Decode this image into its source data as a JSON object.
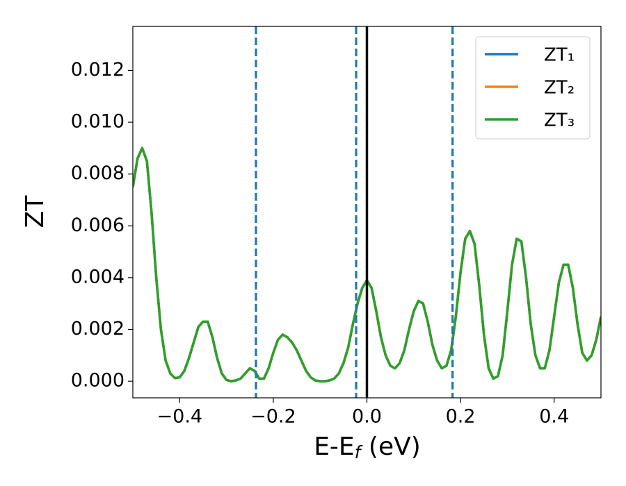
{
  "chart_data": {
    "type": "line",
    "ylabel": "ZT",
    "xlabel_parts": [
      "E-E",
      "f",
      " (eV)"
    ],
    "x": [
      -0.5,
      -0.49,
      -0.48,
      -0.47,
      -0.46,
      -0.45,
      -0.44,
      -0.43,
      -0.42,
      -0.41,
      -0.4,
      -0.39,
      -0.38,
      -0.37,
      -0.36,
      -0.35,
      -0.34,
      -0.33,
      -0.32,
      -0.31,
      -0.3,
      -0.29,
      -0.28,
      -0.27,
      -0.26,
      -0.25,
      -0.24,
      -0.23,
      -0.22,
      -0.21,
      -0.2,
      -0.19,
      -0.18,
      -0.17,
      -0.16,
      -0.15,
      -0.14,
      -0.13,
      -0.12,
      -0.11,
      -0.1,
      -0.09,
      -0.08,
      -0.07,
      -0.06,
      -0.05,
      -0.04,
      -0.03,
      -0.02,
      -0.01,
      0,
      0.01,
      0.02,
      0.03,
      0.04,
      0.05,
      0.06,
      0.07,
      0.08,
      0.09,
      0.1,
      0.11,
      0.12,
      0.13,
      0.14,
      0.15,
      0.16,
      0.17,
      0.18,
      0.19,
      0.2,
      0.21,
      0.22,
      0.23,
      0.24,
      0.25,
      0.26,
      0.27,
      0.28,
      0.29,
      0.3,
      0.31,
      0.32,
      0.33,
      0.34,
      0.35,
      0.36,
      0.37,
      0.38,
      0.39,
      0.4,
      0.41,
      0.42,
      0.43,
      0.44,
      0.45,
      0.46,
      0.47,
      0.48,
      0.49,
      0.5
    ],
    "series": [
      {
        "name": "ZT₁",
        "color": "#1f77b4",
        "values": [
          0.0075,
          0.0086,
          0.009,
          0.0085,
          0.0065,
          0.004,
          0.002,
          0.0008,
          0.0003,
          0.00012,
          0.00015,
          0.0004,
          0.0009,
          0.0015,
          0.0021,
          0.0023,
          0.0023,
          0.0017,
          0.0009,
          0.0003,
          5e-05,
          0.0,
          3e-05,
          0.0001,
          0.0003,
          0.0005,
          0.0004,
          0.0001,
          0.0001,
          0.0005,
          0.0011,
          0.0016,
          0.0018,
          0.0017,
          0.0015,
          0.0012,
          0.0008,
          0.0004,
          0.00015,
          3e-05,
          0.0,
          0.0,
          3e-05,
          0.0001,
          0.0003,
          0.0007,
          0.0013,
          0.0022,
          0.003,
          0.0036,
          0.0039,
          0.0036,
          0.0027,
          0.0017,
          0.001,
          0.0006,
          0.0005,
          0.0007,
          0.0012,
          0.002,
          0.0027,
          0.0031,
          0.003,
          0.0023,
          0.0014,
          0.0008,
          0.0005,
          0.0006,
          0.0012,
          0.0025,
          0.0042,
          0.0055,
          0.0058,
          0.0053,
          0.0037,
          0.0018,
          0.0005,
          0.0001,
          0.0002,
          0.001,
          0.0027,
          0.0045,
          0.0055,
          0.0054,
          0.004,
          0.0022,
          0.001,
          0.0005,
          0.0005,
          0.0012,
          0.0025,
          0.0038,
          0.0045,
          0.0045,
          0.0036,
          0.0022,
          0.0011,
          0.0008,
          0.001,
          0.0016,
          0.0025
        ]
      },
      {
        "name": "ZT₂",
        "color": "#ff7f0e",
        "values": [
          0.0075,
          0.0086,
          0.009,
          0.0085,
          0.0065,
          0.004,
          0.002,
          0.0008,
          0.0003,
          0.00012,
          0.00015,
          0.0004,
          0.0009,
          0.0015,
          0.0021,
          0.0023,
          0.0023,
          0.0017,
          0.0009,
          0.0003,
          5e-05,
          0.0,
          3e-05,
          0.0001,
          0.0003,
          0.0005,
          0.0004,
          0.0001,
          0.0001,
          0.0005,
          0.0011,
          0.0016,
          0.0018,
          0.0017,
          0.0015,
          0.0012,
          0.0008,
          0.0004,
          0.00015,
          3e-05,
          0.0,
          0.0,
          3e-05,
          0.0001,
          0.0003,
          0.0007,
          0.0013,
          0.0022,
          0.003,
          0.0036,
          0.0039,
          0.0036,
          0.0027,
          0.0017,
          0.001,
          0.0006,
          0.0005,
          0.0007,
          0.0012,
          0.002,
          0.0027,
          0.0031,
          0.003,
          0.0023,
          0.0014,
          0.0008,
          0.0005,
          0.0006,
          0.0012,
          0.0025,
          0.0042,
          0.0055,
          0.0058,
          0.0053,
          0.0037,
          0.0018,
          0.0005,
          0.0001,
          0.0002,
          0.001,
          0.0027,
          0.0045,
          0.0055,
          0.0054,
          0.004,
          0.0022,
          0.001,
          0.0005,
          0.0005,
          0.0012,
          0.0025,
          0.0038,
          0.0045,
          0.0045,
          0.0036,
          0.0022,
          0.0011,
          0.0008,
          0.001,
          0.0016,
          0.0025
        ]
      },
      {
        "name": "ZT₃",
        "color": "#2ca02c",
        "values": [
          0.0075,
          0.0086,
          0.009,
          0.0085,
          0.0065,
          0.004,
          0.002,
          0.0008,
          0.0003,
          0.00012,
          0.00015,
          0.0004,
          0.0009,
          0.0015,
          0.0021,
          0.0023,
          0.0023,
          0.0017,
          0.0009,
          0.0003,
          5e-05,
          0.0,
          3e-05,
          0.0001,
          0.0003,
          0.0005,
          0.0004,
          0.0001,
          0.0001,
          0.0005,
          0.0011,
          0.0016,
          0.0018,
          0.0017,
          0.0015,
          0.0012,
          0.0008,
          0.0004,
          0.00015,
          3e-05,
          0.0,
          0.0,
          3e-05,
          0.0001,
          0.0003,
          0.0007,
          0.0013,
          0.0022,
          0.003,
          0.0036,
          0.0039,
          0.0036,
          0.0027,
          0.0017,
          0.001,
          0.0006,
          0.0005,
          0.0007,
          0.0012,
          0.002,
          0.0027,
          0.0031,
          0.003,
          0.0023,
          0.0014,
          0.0008,
          0.0005,
          0.0006,
          0.0012,
          0.0025,
          0.0042,
          0.0055,
          0.0058,
          0.0053,
          0.0037,
          0.0018,
          0.0005,
          0.0001,
          0.0002,
          0.001,
          0.0027,
          0.0045,
          0.0055,
          0.0054,
          0.004,
          0.0022,
          0.001,
          0.0005,
          0.0005,
          0.0012,
          0.0025,
          0.0038,
          0.0045,
          0.0045,
          0.0036,
          0.0022,
          0.0011,
          0.0008,
          0.001,
          0.0016,
          0.0025
        ]
      }
    ],
    "vlines": [
      {
        "x": -0.237,
        "color": "#1f77b4",
        "style": "dashed"
      },
      {
        "x": -0.023,
        "color": "#1f77b4",
        "style": "dashed"
      },
      {
        "x": 0,
        "color": "#000000",
        "style": "solid"
      },
      {
        "x": 0.183,
        "color": "#1f77b4",
        "style": "dashed"
      }
    ],
    "xlim": [
      -0.5,
      0.5
    ],
    "ylim": [
      -0.00064,
      0.0137
    ],
    "xticks": [
      {
        "value": -0.4,
        "label": "−0.4"
      },
      {
        "value": -0.2,
        "label": "−0.2"
      },
      {
        "value": 0,
        "label": "0.0"
      },
      {
        "value": 0.2,
        "label": "0.2"
      },
      {
        "value": 0.4,
        "label": "0.4"
      }
    ],
    "yticks": [
      {
        "value": 0,
        "label": "0.000"
      },
      {
        "value": 0.002,
        "label": "0.002"
      },
      {
        "value": 0.004,
        "label": "0.004"
      },
      {
        "value": 0.006,
        "label": "0.006"
      },
      {
        "value": 0.008,
        "label": "0.008"
      },
      {
        "value": 0.01,
        "label": "0.010"
      },
      {
        "value": 0.012,
        "label": "0.012"
      }
    ],
    "grid": false,
    "legend": "upper right"
  }
}
